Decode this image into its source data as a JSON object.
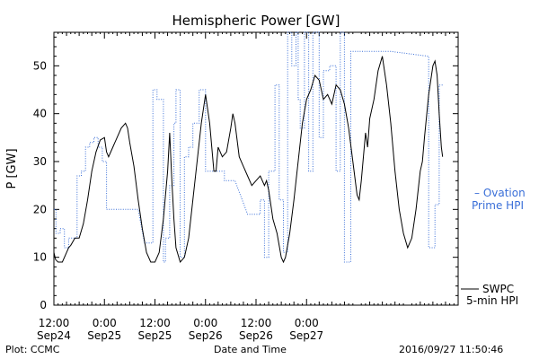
{
  "chart_data": {
    "type": "line",
    "title": "Hemispheric Power [GW]",
    "xlabel": "Date and Time",
    "ylabel": "P [GW]",
    "ylim": [
      0,
      57
    ],
    "xlim": [
      -12,
      84
    ],
    "x_units": "hours from 2016-09-25 00:00",
    "grid": false,
    "yticks": [
      0,
      10,
      20,
      30,
      40,
      50
    ],
    "xticks": [
      {
        "x": -12,
        "time": "12:00",
        "date": "Sep24"
      },
      {
        "x": 0,
        "time": "0:00",
        "date": "Sep25"
      },
      {
        "x": 12,
        "time": "12:00",
        "date": "Sep25"
      },
      {
        "x": 24,
        "time": "0:00",
        "date": "Sep26"
      },
      {
        "x": 36,
        "time": "12:00",
        "date": "Sep26"
      },
      {
        "x": 48,
        "time": "0:00",
        "date": "Sep27"
      }
    ],
    "series": [
      {
        "name": "SWPC 5-min HPI",
        "label_lines": [
          "SWPC",
          "5-min HPI"
        ],
        "color": "#000000",
        "style": "solid",
        "points": [
          [
            -12,
            11
          ],
          [
            -11.6,
            9.5
          ],
          [
            -11,
            9
          ],
          [
            -10,
            9
          ],
          [
            -9,
            11
          ],
          [
            -8.5,
            12
          ],
          [
            -8,
            12.5
          ],
          [
            -7,
            14
          ],
          [
            -6,
            14
          ],
          [
            -5,
            17
          ],
          [
            -4,
            22
          ],
          [
            -3,
            28
          ],
          [
            -2,
            32
          ],
          [
            -1,
            34.5
          ],
          [
            0,
            35
          ],
          [
            0.5,
            32
          ],
          [
            1,
            31
          ],
          [
            2,
            33
          ],
          [
            3,
            35
          ],
          [
            4,
            37
          ],
          [
            5,
            38
          ],
          [
            5.5,
            37
          ],
          [
            6,
            34
          ],
          [
            7,
            29
          ],
          [
            8,
            22
          ],
          [
            9,
            16
          ],
          [
            10,
            11
          ],
          [
            11,
            9
          ],
          [
            12,
            9
          ],
          [
            13,
            11
          ],
          [
            14,
            18
          ],
          [
            15,
            28
          ],
          [
            15.5,
            36
          ],
          [
            16,
            26
          ],
          [
            16.5,
            18
          ],
          [
            17,
            12
          ],
          [
            18,
            9
          ],
          [
            19,
            10
          ],
          [
            20,
            14
          ],
          [
            21,
            22
          ],
          [
            22,
            30
          ],
          [
            23,
            38
          ],
          [
            24,
            44
          ],
          [
            25,
            38
          ],
          [
            26,
            28
          ],
          [
            26.5,
            28
          ],
          [
            27,
            33
          ],
          [
            28,
            31
          ],
          [
            29,
            32
          ],
          [
            30,
            37
          ],
          [
            30.5,
            40
          ],
          [
            31,
            38
          ],
          [
            32,
            31
          ],
          [
            33,
            29
          ],
          [
            34,
            27
          ],
          [
            35,
            25
          ],
          [
            36,
            26
          ],
          [
            37,
            27
          ],
          [
            38,
            25
          ],
          [
            38.5,
            26
          ],
          [
            39,
            24
          ],
          [
            40,
            18
          ],
          [
            41,
            15
          ],
          [
            42,
            10
          ],
          [
            42.5,
            9
          ],
          [
            43,
            10
          ],
          [
            44,
            15
          ],
          [
            45,
            22
          ],
          [
            46,
            30
          ],
          [
            47,
            38
          ],
          [
            48,
            43
          ],
          [
            49,
            45
          ],
          [
            50,
            48
          ],
          [
            51,
            47
          ],
          [
            52,
            43
          ],
          [
            53,
            44
          ],
          [
            54,
            42
          ],
          [
            55,
            46
          ],
          [
            56,
            45
          ],
          [
            57,
            42
          ],
          [
            58,
            37
          ],
          [
            59,
            30
          ],
          [
            60,
            23
          ],
          [
            60.5,
            22
          ],
          [
            61,
            26
          ],
          [
            62,
            36
          ],
          [
            62.5,
            33
          ],
          [
            63,
            39
          ],
          [
            64,
            43
          ],
          [
            65,
            49
          ],
          [
            66,
            52
          ],
          [
            67,
            46
          ],
          [
            68,
            38
          ],
          [
            69,
            28
          ],
          [
            70,
            20
          ],
          [
            71,
            15
          ],
          [
            72,
            12
          ],
          [
            73,
            14
          ],
          [
            74,
            20
          ],
          [
            75,
            28
          ],
          [
            75.5,
            30
          ],
          [
            76,
            35
          ],
          [
            77,
            44
          ],
          [
            78,
            50
          ],
          [
            78.5,
            51
          ],
          [
            79,
            48
          ],
          [
            79.5,
            40
          ],
          [
            80,
            33
          ],
          [
            80.3,
            31
          ]
        ]
      },
      {
        "name": "Ovation Prime HPI",
        "label_lines": [
          "– Ovation",
          "Prime HPI"
        ],
        "color": "#3a6fd8",
        "style": "dotted",
        "points": [
          [
            -12,
            20
          ],
          [
            -11.5,
            20
          ],
          [
            -11.5,
            15
          ],
          [
            -10.5,
            15
          ],
          [
            -10.5,
            16
          ],
          [
            -9.5,
            16
          ],
          [
            -9.5,
            12
          ],
          [
            -8.5,
            12
          ],
          [
            -8.5,
            14
          ],
          [
            -6.5,
            14
          ],
          [
            -6.5,
            27
          ],
          [
            -5.5,
            27
          ],
          [
            -5.5,
            28
          ],
          [
            -4.5,
            28
          ],
          [
            -4.5,
            33
          ],
          [
            -3.5,
            33
          ],
          [
            -3.5,
            34
          ],
          [
            -2.5,
            34
          ],
          [
            -2.5,
            35
          ],
          [
            -1.5,
            35
          ],
          [
            -1.5,
            33
          ],
          [
            -0.5,
            33
          ],
          [
            -0.5,
            30
          ],
          [
            0.5,
            30
          ],
          [
            0.5,
            20
          ],
          [
            8,
            20
          ],
          [
            9.5,
            13
          ],
          [
            11.5,
            13
          ],
          [
            11.5,
            45
          ],
          [
            12.5,
            45
          ],
          [
            12.5,
            43
          ],
          [
            14,
            43
          ],
          [
            14,
            9
          ],
          [
            14.5,
            9
          ],
          [
            14.5,
            14
          ],
          [
            15.5,
            14
          ],
          [
            15.5,
            25
          ],
          [
            16.5,
            25
          ],
          [
            16.5,
            38
          ],
          [
            17,
            38
          ],
          [
            17,
            45
          ],
          [
            18,
            45
          ],
          [
            18,
            10
          ],
          [
            19,
            10
          ],
          [
            19,
            31
          ],
          [
            20,
            31
          ],
          [
            20,
            33
          ],
          [
            21,
            33
          ],
          [
            21,
            38
          ],
          [
            22.5,
            38
          ],
          [
            22.5,
            45
          ],
          [
            24,
            45
          ],
          [
            24,
            28
          ],
          [
            28.5,
            28
          ],
          [
            28.5,
            26
          ],
          [
            31,
            26
          ],
          [
            34,
            19
          ],
          [
            37,
            19
          ],
          [
            37,
            22
          ],
          [
            38,
            22
          ],
          [
            38,
            10
          ],
          [
            39,
            10
          ],
          [
            39,
            28
          ],
          [
            40.5,
            28
          ],
          [
            40.5,
            46
          ],
          [
            41.5,
            46
          ],
          [
            41.5,
            22
          ],
          [
            42.5,
            22
          ],
          [
            42.5,
            11
          ],
          [
            43.5,
            11
          ],
          [
            43.5,
            57
          ],
          [
            44.5,
            57
          ],
          [
            44.5,
            50
          ],
          [
            45.5,
            50
          ],
          [
            45.5,
            57
          ],
          [
            46,
            57
          ],
          [
            46,
            43
          ],
          [
            46.5,
            43
          ],
          [
            46.5,
            37
          ],
          [
            47.5,
            37
          ],
          [
            47.5,
            57
          ],
          [
            48.5,
            57
          ],
          [
            48.5,
            28
          ],
          [
            49.5,
            28
          ],
          [
            49.5,
            57
          ],
          [
            51,
            57
          ],
          [
            51,
            35
          ],
          [
            52,
            35
          ],
          [
            52,
            49
          ],
          [
            53.5,
            49
          ],
          [
            53.5,
            50
          ],
          [
            55,
            50
          ],
          [
            55,
            28
          ],
          [
            56,
            28
          ],
          [
            56,
            57
          ],
          [
            57,
            57
          ],
          [
            57,
            9
          ],
          [
            58.5,
            9
          ],
          [
            58.5,
            53
          ],
          [
            68,
            53
          ],
          [
            77,
            52
          ],
          [
            77,
            12
          ],
          [
            78.5,
            12
          ],
          [
            78.5,
            21
          ],
          [
            79.5,
            21
          ],
          [
            79.5,
            46
          ],
          [
            80.3,
            46
          ]
        ]
      }
    ]
  },
  "footer": {
    "left": "Plot: CCMC",
    "center": "Date and Time",
    "right": "2016/09/27 11:50:46"
  }
}
